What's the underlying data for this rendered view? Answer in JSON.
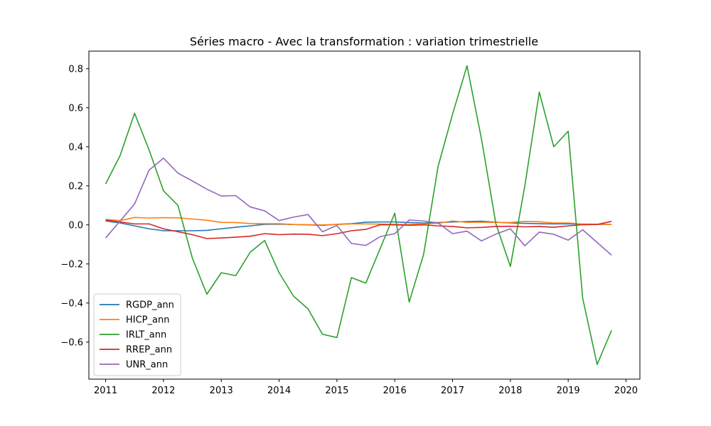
{
  "chart_data": {
    "type": "line",
    "title": "Séries macro - Avec la transformation : variation trimestrielle",
    "xlabel": "",
    "ylabel": "",
    "xlim": [
      2010.71,
      2020.24
    ],
    "ylim": [
      -0.79,
      0.89
    ],
    "x_ticks": [
      2011,
      2012,
      2013,
      2014,
      2015,
      2016,
      2017,
      2018,
      2019,
      2020
    ],
    "y_ticks": [
      -0.6,
      -0.4,
      -0.2,
      0.0,
      0.2,
      0.4,
      0.6,
      0.8
    ],
    "y_tick_labels": [
      "−0.6",
      "−0.4",
      "−0.2",
      "0.0",
      "0.2",
      "0.4",
      "0.6",
      "0.8"
    ],
    "grid": false,
    "legend_position": "lower-left",
    "x": [
      2011.0,
      2011.25,
      2011.5,
      2011.75,
      2012.0,
      2012.25,
      2012.5,
      2012.75,
      2013.0,
      2013.25,
      2013.5,
      2013.75,
      2014.0,
      2014.25,
      2014.5,
      2014.75,
      2015.0,
      2015.25,
      2015.5,
      2015.75,
      2016.0,
      2016.25,
      2016.5,
      2016.75,
      2017.0,
      2017.25,
      2017.5,
      2017.75,
      2018.0,
      2018.25,
      2018.5,
      2018.75,
      2019.0,
      2019.25,
      2019.5,
      2019.75
    ],
    "series": [
      {
        "name": "RGDP_ann",
        "color": "#1f77b4",
        "values": [
          0.02,
          0.01,
          -0.005,
          -0.02,
          -0.03,
          -0.03,
          -0.03,
          -0.028,
          -0.02,
          -0.012,
          -0.005,
          0.003,
          0.004,
          0.002,
          0.0,
          -0.002,
          0.003,
          0.006,
          0.014,
          0.015,
          0.015,
          0.012,
          0.01,
          0.012,
          0.015,
          0.017,
          0.019,
          0.014,
          0.01,
          0.008,
          0.006,
          0.005,
          0.005,
          0.004,
          0.003,
          0.002
        ]
      },
      {
        "name": "HICP_ann",
        "color": "#ff7f0e",
        "values": [
          0.028,
          0.022,
          0.038,
          0.035,
          0.037,
          0.036,
          0.03,
          0.024,
          0.013,
          0.012,
          0.007,
          0.006,
          0.006,
          0.002,
          0.001,
          0.0,
          0.002,
          0.005,
          0.005,
          0.004,
          0.003,
          0.002,
          0.005,
          0.008,
          0.02,
          0.013,
          0.014,
          0.013,
          0.012,
          0.018,
          0.016,
          0.01,
          0.01,
          0.004,
          0.004,
          0.002
        ]
      },
      {
        "name": "IRLT_ann",
        "color": "#2ca02c",
        "values": [
          0.21,
          0.355,
          0.572,
          0.385,
          0.175,
          0.1,
          -0.17,
          -0.355,
          -0.245,
          -0.26,
          -0.14,
          -0.08,
          -0.245,
          -0.365,
          -0.43,
          -0.56,
          -0.577,
          -0.27,
          -0.298,
          -0.12,
          0.06,
          -0.395,
          -0.15,
          0.3,
          0.567,
          0.815,
          0.44,
          0.005,
          -0.213,
          0.2,
          0.68,
          0.4,
          0.48,
          -0.375,
          -0.715,
          -0.54
        ]
      },
      {
        "name": "RREP_ann",
        "color": "#d62728",
        "values": [
          0.025,
          0.015,
          0.005,
          0.005,
          -0.02,
          -0.035,
          -0.05,
          -0.07,
          -0.067,
          -0.063,
          -0.058,
          -0.045,
          -0.05,
          -0.047,
          -0.048,
          -0.055,
          -0.045,
          -0.03,
          -0.023,
          0.001,
          0.0,
          -0.002,
          0.0,
          -0.005,
          -0.008,
          -0.015,
          -0.013,
          -0.008,
          -0.007,
          -0.01,
          -0.008,
          -0.012,
          -0.005,
          0.001,
          0.002,
          0.018
        ]
      },
      {
        "name": "UNR_ann",
        "color": "#9467bd",
        "values": [
          -0.067,
          0.02,
          0.107,
          0.28,
          0.342,
          0.265,
          0.225,
          0.183,
          0.148,
          0.15,
          0.092,
          0.072,
          0.022,
          0.04,
          0.053,
          -0.035,
          -0.003,
          -0.095,
          -0.105,
          -0.06,
          -0.045,
          0.025,
          0.02,
          0.01,
          -0.045,
          -0.032,
          -0.082,
          -0.047,
          -0.02,
          -0.107,
          -0.037,
          -0.048,
          -0.078,
          -0.025,
          -0.09,
          -0.155
        ]
      }
    ]
  }
}
